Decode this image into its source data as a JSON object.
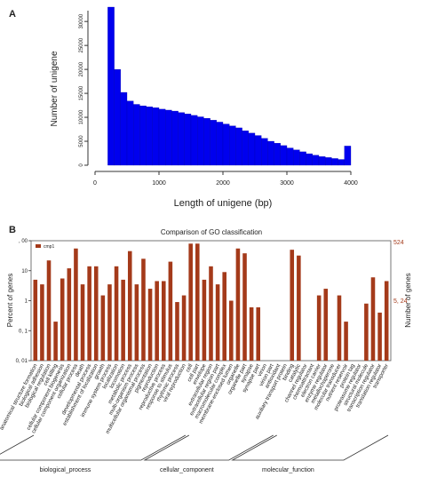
{
  "panels": {
    "a": "A",
    "b": "B"
  },
  "chart_data": [
    {
      "type": "bar",
      "xlabel": "Length of unigene (bp)",
      "ylabel": "Number of unigene",
      "xlim": [
        0,
        4000
      ],
      "ylim": [
        0,
        33000
      ],
      "xticks": [
        "0",
        "1000",
        "2000",
        "3000",
        "4000"
      ],
      "yticks": [
        "0",
        "5000",
        "10000",
        "15000",
        "20000",
        "25000",
        "30000"
      ],
      "bin_width": 100,
      "x": [
        200,
        300,
        400,
        500,
        600,
        700,
        800,
        900,
        1000,
        1100,
        1200,
        1300,
        1400,
        1500,
        1600,
        1700,
        1800,
        1900,
        2000,
        2100,
        2200,
        2300,
        2400,
        2500,
        2600,
        2700,
        2800,
        2900,
        3000,
        3100,
        3200,
        3300,
        3400,
        3500,
        3600,
        3700,
        3800,
        3900
      ],
      "values": [
        33000,
        20000,
        15200,
        13400,
        12700,
        12400,
        12200,
        12000,
        11700,
        11500,
        11300,
        11000,
        10700,
        10400,
        10100,
        9800,
        9400,
        9000,
        8600,
        8200,
        7800,
        7200,
        6700,
        6200,
        5600,
        5000,
        4600,
        4100,
        3600,
        3200,
        2800,
        2400,
        2100,
        1800,
        1600,
        1400,
        1200,
        4000
      ],
      "bar_color": "#0000ee",
      "grid": false
    },
    {
      "type": "bar",
      "title": "Comparison of GO classification",
      "ylabel_left": "Percent of genes",
      "ylabel_right": "Number of genes",
      "log_scale": true,
      "ylim": [
        0.01,
        100
      ],
      "yticks_left": [
        "0, 01",
        "0, 1",
        "1",
        "10",
        ", 00"
      ],
      "yticks_right": [
        "524",
        "5, 24"
      ],
      "legend": {
        "label": "cmp1",
        "position": "top-left"
      },
      "bar_color": "#a43a1a",
      "categories": [
        "anatomical structure formation",
        "biological adhesion",
        "biological regulation",
        "cell killing",
        "cellular component biogenesis",
        "cellular component organization",
        "cellular process",
        "death",
        "developmental process",
        "establishment of localization",
        "growth",
        "immune system process",
        "localization",
        "locomotion",
        "metabolic process",
        "multi-organism process",
        "multicellular organismal process",
        "pigmentation",
        "reproduction",
        "reproductive process",
        "response to stimulus",
        "rhythmic process",
        "viral reproduction",
        "cell",
        "cell part",
        "envelope",
        "extracellular region",
        "extracellular region part",
        "macromolecular complex",
        "membrane-enclosed lumen",
        "organelle",
        "organelle part",
        "synapse",
        "synapse part",
        "virion",
        "virion part",
        "antioxidant",
        "auxiliary transport protein",
        "binding",
        "catalytic",
        "channel regulator",
        "chemoattractant",
        "electron carrier",
        "enzyme regulator",
        "metallochaperone",
        "molecular transducer",
        "nutrient reservoir",
        "protein tag",
        "proteasome regulator",
        "structural molecule",
        "transcription regulator",
        "translation regulator",
        "transporter"
      ],
      "values": [
        5,
        3.5,
        22,
        0.2,
        5.5,
        12,
        55,
        3.5,
        14,
        14,
        1.5,
        3.5,
        14,
        5,
        45,
        3.5,
        25,
        2.5,
        4.5,
        4.5,
        20,
        0.9,
        1.5,
        80,
        80,
        5,
        14,
        3.5,
        9,
        1,
        55,
        38,
        0.6,
        0.6,
        null,
        null,
        null,
        null,
        50,
        32,
        null,
        null,
        1.5,
        2.5,
        null,
        1.5,
        0.2,
        null,
        null,
        0.8,
        6,
        0.4,
        4.5
      ],
      "groups": [
        {
          "label": "biological_process",
          "count": 23
        },
        {
          "label": "cellular_component",
          "count": 13
        },
        {
          "label": "molecular_function",
          "count": 17
        }
      ]
    }
  ]
}
